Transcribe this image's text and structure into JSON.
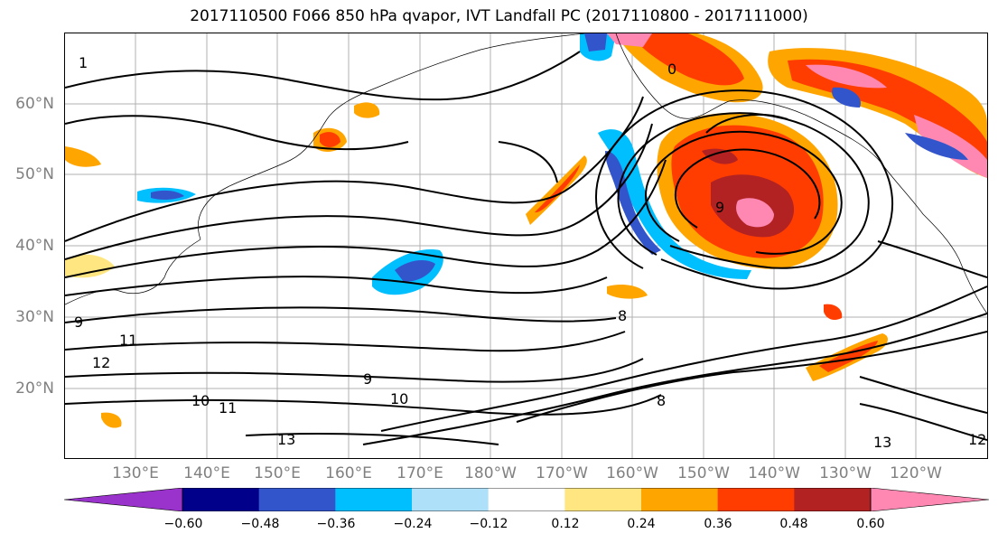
{
  "title": "2017110500 F066 850 hPa qvapor, IVT Landfall PC (2017110800 - 2017111000)",
  "lat_labels": [
    "60°N",
    "50°N",
    "40°N",
    "30°N",
    "20°N"
  ],
  "lon_labels": [
    "130°E",
    "140°E",
    "150°E",
    "160°E",
    "170°E",
    "180°W",
    "170°W",
    "160°W",
    "150°W",
    "140°W",
    "130°W",
    "120°W"
  ],
  "colorbar": {
    "colors": [
      "#9933cc",
      "#00008b",
      "#3355cc",
      "#00bfff",
      "#aee0fa",
      "#ffffff",
      "#ffe680",
      "#ffa500",
      "#ff3d00",
      "#b22222",
      "#ff88b3"
    ],
    "ticks": [
      "−0.60",
      "−0.48",
      "−0.36",
      "−0.24",
      "−0.12",
      "0.12",
      "0.24",
      "0.36",
      "0.48",
      "0.60"
    ]
  },
  "contour_labels": [
    "1",
    "0",
    "8",
    "8",
    "9",
    "9",
    "9",
    "10",
    "10",
    "11",
    "11",
    "12",
    "12",
    "13",
    "13"
  ],
  "colors": {
    "gridline": "#b0b0b0",
    "contour": "#000000",
    "axis_label": "#808080"
  }
}
